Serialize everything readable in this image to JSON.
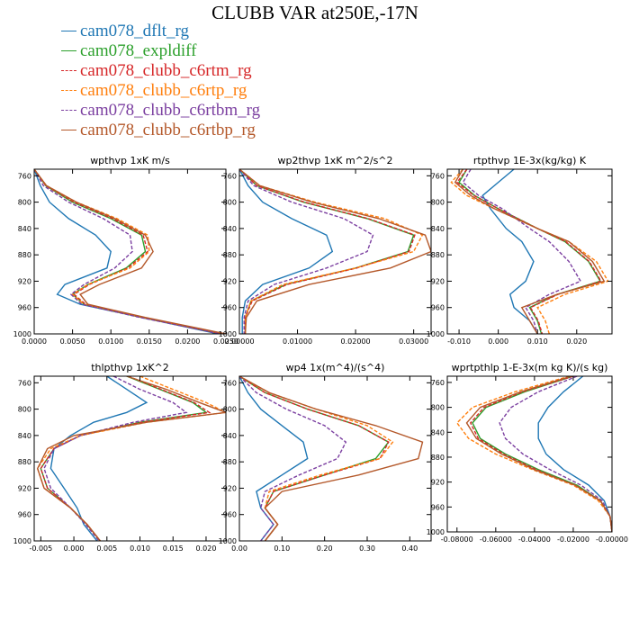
{
  "title": "CLUBB VAR at250E,-17N",
  "legend": [
    {
      "name": "cam078_dflt_rg",
      "color": "#1f77b4",
      "dash": false
    },
    {
      "name": "cam078_expldiff",
      "color": "#2ca02c",
      "dash": false
    },
    {
      "name": "cam078_clubb_c6rtm_rg",
      "color": "#d62728",
      "dash": true
    },
    {
      "name": "cam078_clubb_c6rtp_rg",
      "color": "#ff7f0e",
      "dash": true
    },
    {
      "name": "cam078_clubb_c6rtbm_rg",
      "color": "#7b3fa0",
      "dash": true
    },
    {
      "name": "cam078_clubb_c6rtbp_rg",
      "color": "#b4582a",
      "dash": false
    }
  ],
  "chart_data": [
    {
      "type": "line",
      "title": "wpthvp  1xK m/s",
      "xlim": [
        0,
        0.025
      ],
      "xticks": [
        0,
        0.005,
        0.01,
        0.015,
        0.02,
        0.025
      ],
      "xtick_labels": [
        "0.0000",
        "0.0050",
        "0.0100",
        "0.0150",
        "0.0200",
        "0.0250"
      ],
      "ylim": [
        1000,
        750
      ],
      "yticks": [
        760,
        800,
        840,
        880,
        920,
        960,
        1000
      ],
      "y": [
        750,
        775,
        800,
        825,
        850,
        875,
        900,
        925,
        940,
        955,
        975,
        1000
      ],
      "series": [
        {
          "name": "cam078_dflt_rg",
          "values": [
            0.0,
            0.0008,
            0.002,
            0.0045,
            0.008,
            0.01,
            0.0095,
            0.004,
            0.003,
            0.006,
            0.014,
            0.024
          ]
        },
        {
          "name": "cam078_expldiff",
          "values": [
            0.0,
            0.0015,
            0.005,
            0.01,
            0.014,
            0.0145,
            0.012,
            0.007,
            0.005,
            0.0065,
            0.014,
            0.0245
          ]
        },
        {
          "name": "cam078_clubb_c6rtm_rg",
          "values": [
            0.0,
            0.0015,
            0.0052,
            0.0102,
            0.0142,
            0.0148,
            0.0122,
            0.0072,
            0.0052,
            0.0067,
            0.0142,
            0.0246
          ]
        },
        {
          "name": "cam078_clubb_c6rtp_rg",
          "values": [
            0.0,
            0.0016,
            0.0055,
            0.0108,
            0.0148,
            0.015,
            0.0125,
            0.007,
            0.005,
            0.0065,
            0.0142,
            0.0248
          ]
        },
        {
          "name": "cam078_clubb_c6rtbm_rg",
          "values": [
            0.0,
            0.0012,
            0.0045,
            0.009,
            0.0125,
            0.0128,
            0.0105,
            0.0065,
            0.0048,
            0.0062,
            0.0138,
            0.0243
          ]
        },
        {
          "name": "cam078_clubb_c6rtbp_rg",
          "values": [
            0.0,
            0.0016,
            0.0055,
            0.0105,
            0.0145,
            0.0155,
            0.014,
            0.0085,
            0.006,
            0.007,
            0.0145,
            0.025
          ]
        }
      ]
    },
    {
      "type": "line",
      "title": "wp2thvp  1xK m^2/s^2",
      "xlim": [
        0,
        0.033
      ],
      "xticks": [
        0,
        0.01,
        0.02,
        0.03
      ],
      "xtick_labels": [
        "0.00000",
        "0.01000",
        "0.02000",
        "0.03000"
      ],
      "ylim": [
        1000,
        750
      ],
      "yticks": [
        760,
        800,
        840,
        880,
        920,
        960,
        1000
      ],
      "y": [
        750,
        775,
        800,
        825,
        850,
        875,
        900,
        925,
        950,
        975,
        1000
      ],
      "series": [
        {
          "name": "cam078_dflt_rg",
          "values": [
            0.0,
            0.0015,
            0.004,
            0.009,
            0.015,
            0.016,
            0.012,
            0.004,
            0.001,
            0.0005,
            0.0005
          ]
        },
        {
          "name": "cam078_expldiff",
          "values": [
            0.0,
            0.003,
            0.011,
            0.022,
            0.03,
            0.029,
            0.02,
            0.008,
            0.002,
            0.001,
            0.001
          ]
        },
        {
          "name": "cam078_clubb_c6rtm_rg",
          "values": [
            0.0,
            0.003,
            0.0112,
            0.0222,
            0.0302,
            0.0292,
            0.0202,
            0.0082,
            0.0022,
            0.001,
            0.001
          ]
        },
        {
          "name": "cam078_clubb_c6rtp_rg",
          "values": [
            0.0,
            0.0035,
            0.013,
            0.025,
            0.0315,
            0.03,
            0.02,
            0.0075,
            0.002,
            0.001,
            0.001
          ]
        },
        {
          "name": "cam078_clubb_c6rtbm_rg",
          "values": [
            0.0,
            0.0025,
            0.009,
            0.018,
            0.023,
            0.022,
            0.015,
            0.006,
            0.0015,
            0.0008,
            0.0008
          ]
        },
        {
          "name": "cam078_clubb_c6rtbp_rg",
          "values": [
            0.0,
            0.0035,
            0.0125,
            0.024,
            0.032,
            0.033,
            0.026,
            0.012,
            0.003,
            0.0012,
            0.001
          ]
        }
      ]
    },
    {
      "type": "line",
      "title": "rtpthvp  1E-3x(kg/kg) K",
      "xlim": [
        -0.013,
        0.029
      ],
      "xticks": [
        -0.01,
        0,
        0.01,
        0.02
      ],
      "xtick_labels": [
        "-0.010",
        "0.000",
        "0.010",
        "0.020"
      ],
      "ylim": [
        1000,
        750
      ],
      "yticks": [
        760,
        800,
        840,
        880,
        920,
        960,
        1000
      ],
      "y": [
        750,
        770,
        790,
        810,
        840,
        860,
        890,
        920,
        940,
        960,
        980,
        1000
      ],
      "series": [
        {
          "name": "cam078_dflt_rg",
          "values": [
            0.004,
            0.0,
            -0.004,
            -0.002,
            0.002,
            0.006,
            0.009,
            0.007,
            0.003,
            0.004,
            0.008,
            0.01
          ]
        },
        {
          "name": "cam078_expldiff",
          "values": [
            -0.008,
            -0.01,
            -0.006,
            0.0,
            0.01,
            0.017,
            0.023,
            0.026,
            0.015,
            0.008,
            0.01,
            0.011
          ]
        },
        {
          "name": "cam078_clubb_c6rtm_rg",
          "values": [
            -0.008,
            -0.0105,
            -0.0062,
            0.0,
            0.01,
            0.0172,
            0.0232,
            0.0262,
            0.0152,
            0.0082,
            0.0102,
            0.0112
          ]
        },
        {
          "name": "cam078_clubb_c6rtp_rg",
          "values": [
            -0.009,
            -0.012,
            -0.008,
            -0.001,
            0.01,
            0.018,
            0.025,
            0.028,
            0.017,
            0.01,
            0.012,
            0.013
          ]
        },
        {
          "name": "cam078_clubb_c6rtbm_rg",
          "values": [
            -0.007,
            -0.009,
            -0.005,
            0.001,
            0.008,
            0.013,
            0.018,
            0.021,
            0.013,
            0.007,
            0.009,
            0.01
          ]
        },
        {
          "name": "cam078_clubb_c6rtbp_rg",
          "values": [
            -0.009,
            -0.011,
            -0.007,
            -0.001,
            0.01,
            0.018,
            0.024,
            0.027,
            0.015,
            0.006,
            0.008,
            0.01
          ]
        }
      ]
    },
    {
      "type": "line",
      "title": "thlpthvp  1xK^2",
      "xlim": [
        -0.006,
        0.023
      ],
      "xticks": [
        -0.005,
        0,
        0.005,
        0.01,
        0.015,
        0.02
      ],
      "xtick_labels": [
        "-0.005",
        "0.000",
        "0.005",
        "0.010",
        "0.015",
        "0.020"
      ],
      "ylim": [
        1000,
        750
      ],
      "yticks": [
        760,
        800,
        840,
        880,
        920,
        960,
        1000
      ],
      "y": [
        750,
        770,
        790,
        805,
        820,
        840,
        860,
        890,
        920,
        950,
        975,
        1000
      ],
      "series": [
        {
          "name": "cam078_dflt_rg",
          "values": [
            0.005,
            0.008,
            0.011,
            0.008,
            0.003,
            -0.0005,
            -0.003,
            -0.0035,
            -0.0015,
            0.0005,
            0.0015,
            0.0035
          ]
        },
        {
          "name": "cam078_expldiff",
          "values": [
            0.008,
            0.013,
            0.018,
            0.02,
            0.01,
            0.001,
            -0.003,
            -0.005,
            -0.004,
            -0.0005,
            0.002,
            0.004
          ]
        },
        {
          "name": "cam078_clubb_c6rtm_rg",
          "values": [
            0.0082,
            0.0132,
            0.0182,
            0.0205,
            0.0102,
            0.001,
            -0.003,
            -0.005,
            -0.004,
            -0.0005,
            0.002,
            0.004
          ]
        },
        {
          "name": "cam078_clubb_c6rtp_rg",
          "values": [
            0.01,
            0.015,
            0.02,
            0.023,
            0.011,
            0.001,
            -0.0035,
            -0.0055,
            -0.0045,
            -0.0005,
            0.002,
            0.004
          ]
        },
        {
          "name": "cam078_clubb_c6rtbm_rg",
          "values": [
            0.006,
            0.01,
            0.015,
            0.017,
            0.009,
            0.001,
            -0.003,
            -0.0045,
            -0.0035,
            -0.0005,
            0.0018,
            0.0038
          ]
        },
        {
          "name": "cam078_clubb_c6rtbp_rg",
          "values": [
            0.008,
            0.014,
            0.019,
            0.023,
            0.011,
            0.0,
            -0.004,
            -0.0055,
            -0.0045,
            -0.0005,
            0.002,
            0.004
          ]
        }
      ]
    },
    {
      "type": "line",
      "title": "wp4  1x(m^4)/(s^4)",
      "xlim": [
        0,
        0.45
      ],
      "xticks": [
        0,
        0.1,
        0.2,
        0.3,
        0.4
      ],
      "xtick_labels": [
        "0.00",
        "0.10",
        "0.20",
        "0.30",
        "0.40"
      ],
      "ylim": [
        1000,
        750
      ],
      "yticks": [
        760,
        800,
        840,
        880,
        920,
        960,
        1000
      ],
      "y": [
        750,
        775,
        800,
        825,
        850,
        875,
        900,
        925,
        950,
        975,
        1000
      ],
      "series": [
        {
          "name": "cam078_dflt_rg",
          "values": [
            0.0,
            0.02,
            0.05,
            0.1,
            0.15,
            0.16,
            0.1,
            0.04,
            0.05,
            0.08,
            0.05
          ]
        },
        {
          "name": "cam078_expldiff",
          "values": [
            0.0,
            0.06,
            0.16,
            0.28,
            0.35,
            0.32,
            0.2,
            0.08,
            0.06,
            0.09,
            0.06
          ]
        },
        {
          "name": "cam078_clubb_c6rtm_rg",
          "values": [
            0.0,
            0.06,
            0.16,
            0.28,
            0.35,
            0.33,
            0.2,
            0.08,
            0.06,
            0.09,
            0.06
          ]
        },
        {
          "name": "cam078_clubb_c6rtp_rg",
          "values": [
            0.0,
            0.07,
            0.18,
            0.3,
            0.36,
            0.33,
            0.19,
            0.07,
            0.06,
            0.09,
            0.06
          ]
        },
        {
          "name": "cam078_clubb_c6rtbm_rg",
          "values": [
            0.0,
            0.04,
            0.11,
            0.2,
            0.25,
            0.23,
            0.14,
            0.06,
            0.05,
            0.08,
            0.05
          ]
        },
        {
          "name": "cam078_clubb_c6rtbp_rg",
          "values": [
            0.0,
            0.07,
            0.18,
            0.32,
            0.43,
            0.42,
            0.28,
            0.1,
            0.06,
            0.09,
            0.06
          ]
        }
      ]
    },
    {
      "type": "line",
      "title": "wprtpthlp  1-E-3x(m kg K)/(s kg)",
      "xlim": [
        -0.085,
        0
      ],
      "xticks": [
        -0.08,
        -0.06,
        -0.04,
        -0.02,
        0
      ],
      "xtick_labels": [
        "-0.08000",
        "-0.06000",
        "-0.04000",
        "-0.02000",
        "-0.00000"
      ],
      "ylim": [
        1000,
        750
      ],
      "yticks": [
        760,
        800,
        840,
        880,
        920,
        960,
        1000
      ],
      "y": [
        750,
        775,
        800,
        825,
        850,
        875,
        900,
        925,
        950,
        975,
        1000
      ],
      "series": [
        {
          "name": "cam078_dflt_rg",
          "values": [
            -0.015,
            -0.025,
            -0.033,
            -0.038,
            -0.038,
            -0.034,
            -0.025,
            -0.012,
            -0.004,
            -0.001,
            0.0
          ]
        },
        {
          "name": "cam078_expldiff",
          "values": [
            -0.02,
            -0.045,
            -0.065,
            -0.072,
            -0.068,
            -0.055,
            -0.038,
            -0.018,
            -0.006,
            -0.001,
            0.0
          ]
        },
        {
          "name": "cam078_clubb_c6rtm_rg",
          "values": [
            -0.02,
            -0.046,
            -0.066,
            -0.073,
            -0.069,
            -0.056,
            -0.039,
            -0.019,
            -0.006,
            -0.001,
            0.0
          ]
        },
        {
          "name": "cam078_clubb_c6rtp_rg",
          "values": [
            -0.022,
            -0.05,
            -0.072,
            -0.08,
            -0.074,
            -0.06,
            -0.041,
            -0.02,
            -0.007,
            -0.001,
            0.0
          ]
        },
        {
          "name": "cam078_clubb_c6rtbm_rg",
          "values": [
            -0.018,
            -0.038,
            -0.052,
            -0.058,
            -0.055,
            -0.046,
            -0.032,
            -0.016,
            -0.005,
            -0.001,
            0.0
          ]
        },
        {
          "name": "cam078_clubb_c6rtbp_rg",
          "values": [
            -0.021,
            -0.047,
            -0.068,
            -0.075,
            -0.07,
            -0.057,
            -0.04,
            -0.019,
            -0.006,
            -0.001,
            0.0
          ]
        }
      ]
    }
  ]
}
